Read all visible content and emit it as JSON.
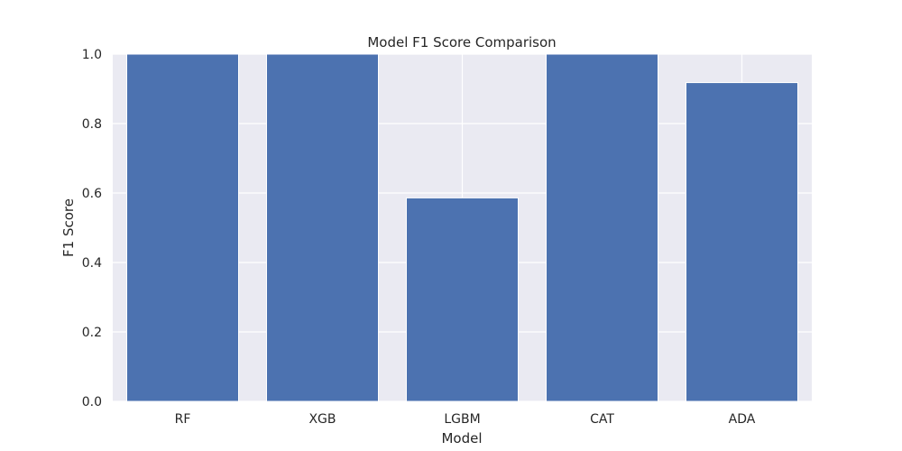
{
  "chart_data": {
    "type": "bar",
    "title": "Model F1 Score Comparison",
    "xlabel": "Model",
    "ylabel": "F1 Score",
    "categories": [
      "RF",
      "XGB",
      "LGBM",
      "CAT",
      "ADA"
    ],
    "values": [
      1.0,
      1.0,
      0.586,
      1.0,
      0.918
    ],
    "ylim": [
      0,
      1.0
    ],
    "yticks": [
      "0.0",
      "0.2",
      "0.4",
      "0.6",
      "0.8",
      "1.0"
    ],
    "grid": true,
    "legend": "none",
    "colors": {
      "bar": "#4c72b0",
      "background": "#eaeaf2",
      "grid": "#ffffff"
    }
  }
}
